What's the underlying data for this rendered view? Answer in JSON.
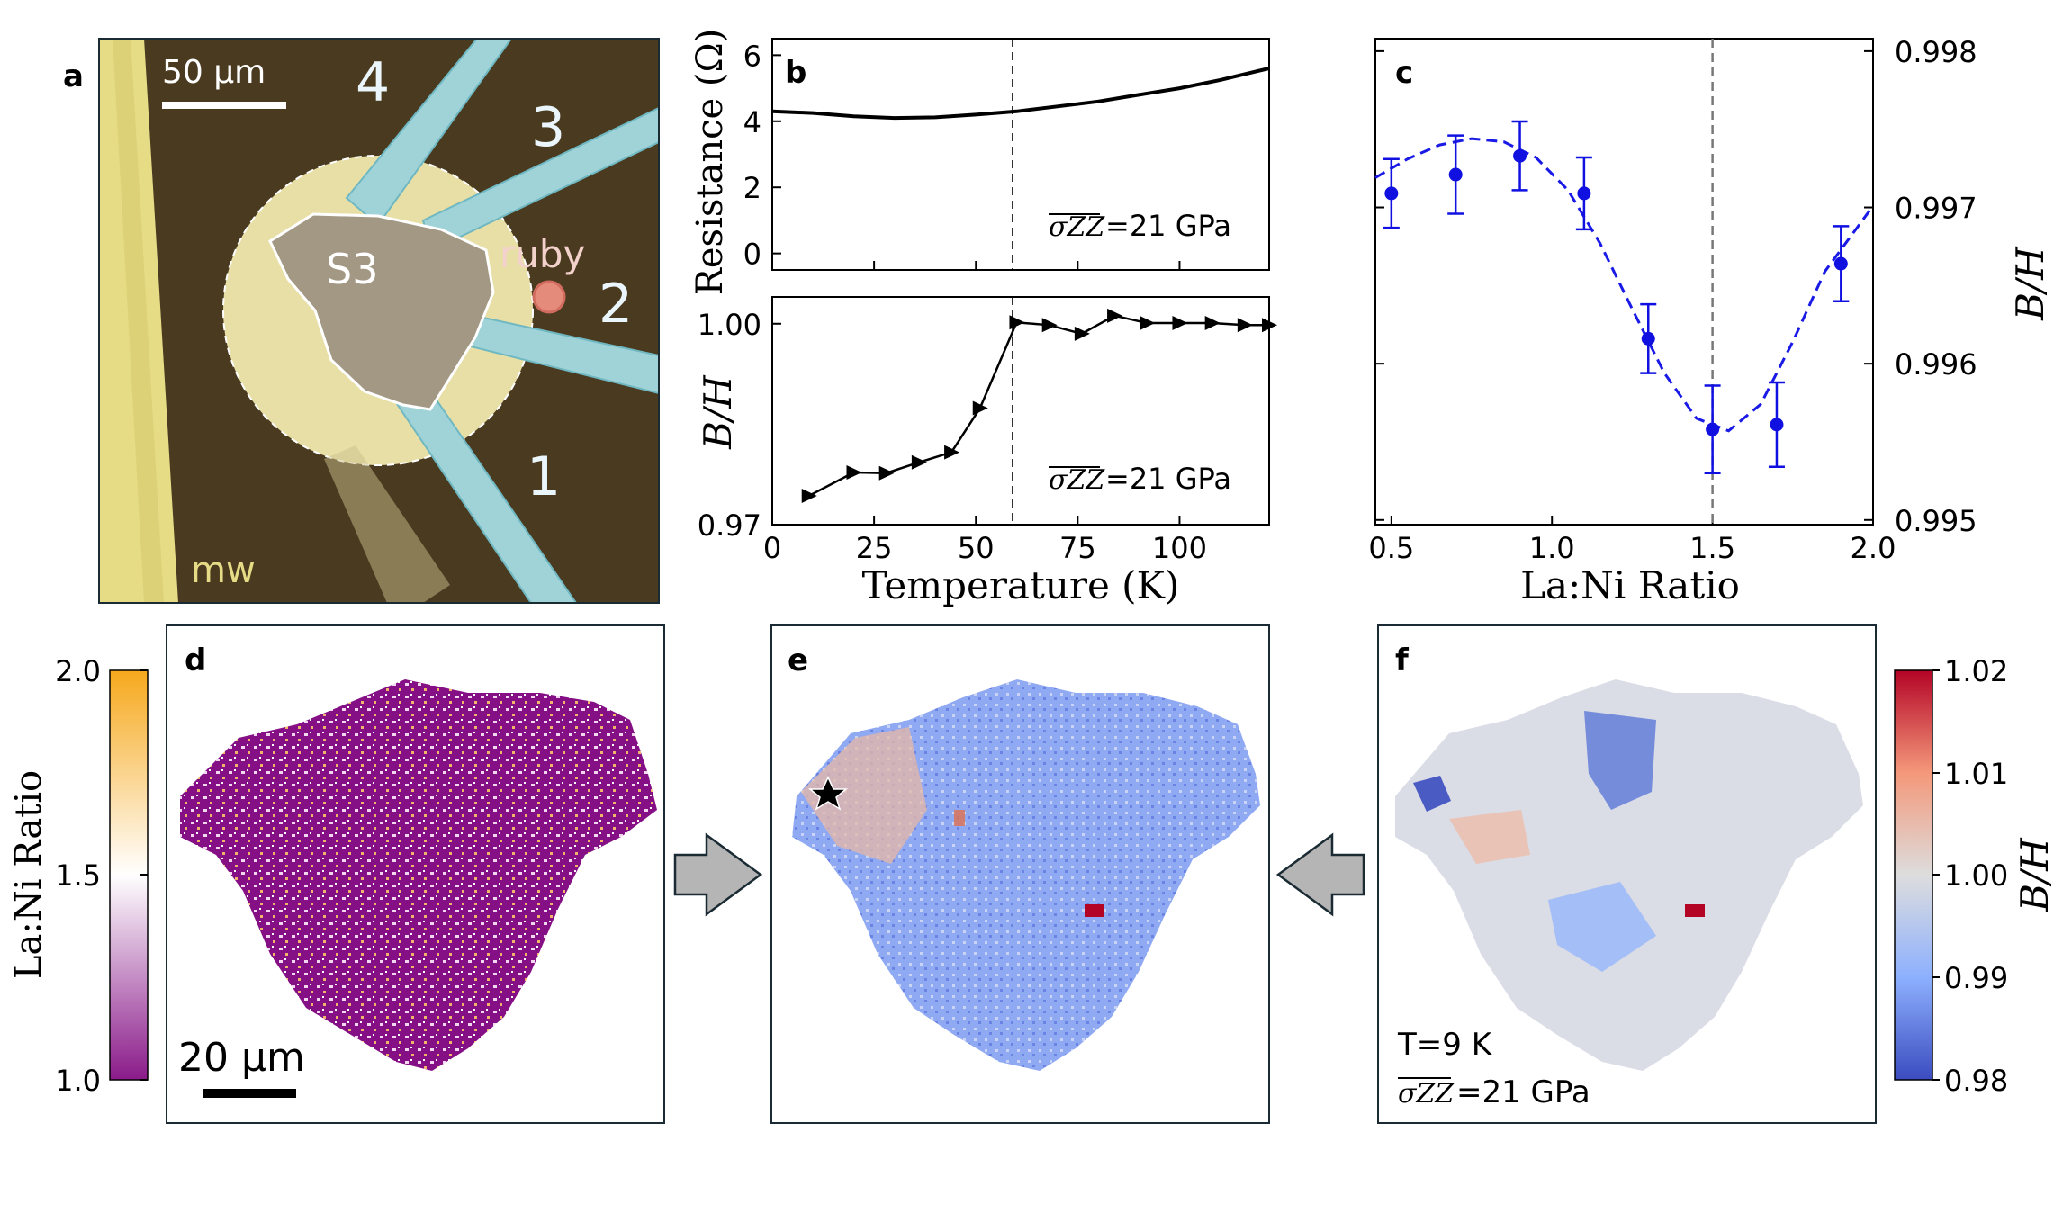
{
  "colors": {
    "plot_blue": "#1010e0",
    "fit_blue": "#1a1ae6",
    "marker_black": "#000000",
    "photo_bg": "#4a3a20",
    "photo_wire": "#e6dc86",
    "photo_disk": "#e8dfa7",
    "photo_lead": "#9fd3d8",
    "arrow_gray": "#b5b5b5",
    "frame": "#1b2b34"
  },
  "panel_a": {
    "label": "a",
    "scale_bar": "50 µm",
    "lead_labels": [
      "4",
      "3",
      "2",
      "1"
    ],
    "sample_label": "S3",
    "ruby_label": "ruby",
    "mw_label": "mw"
  },
  "chart_data": [
    {
      "id": "b-top",
      "type": "line",
      "panel_label": "b",
      "ylabel": "Resistance (Ω)",
      "xlabel": "",
      "annotation": "=21 GPa",
      "annotation_symbol": "σZZ",
      "xlim": [
        0,
        122
      ],
      "ylim": [
        -0.5,
        6.5
      ],
      "xticks": [
        0,
        25,
        50,
        75,
        100
      ],
      "yticks": [
        0,
        2,
        4,
        6
      ],
      "ytick_labels": [
        "0",
        "2",
        "4",
        "6"
      ],
      "vline_x": 59,
      "x": [
        0,
        10,
        20,
        30,
        40,
        50,
        60,
        70,
        80,
        90,
        100,
        110,
        122
      ],
      "y": [
        4.3,
        4.25,
        4.15,
        4.1,
        4.12,
        4.2,
        4.3,
        4.45,
        4.6,
        4.8,
        5.0,
        5.25,
        5.6
      ]
    },
    {
      "id": "b-bottom",
      "type": "line",
      "panel_label": "",
      "ylabel": "B/H",
      "xlabel": "Temperature (K)",
      "annotation": "=21 GPa",
      "annotation_symbol": "σZZ",
      "xlim": [
        0,
        122
      ],
      "ylim": [
        0.97,
        1.004
      ],
      "xticks": [
        0,
        25,
        50,
        75,
        100
      ],
      "xtick_labels": [
        "0",
        "25",
        "50",
        "75",
        "100"
      ],
      "yticks": [
        0.97,
        1.0
      ],
      "ytick_labels": [
        "0.97",
        "1.00"
      ],
      "vline_x": 59,
      "x": [
        9,
        20,
        28,
        36,
        44,
        51,
        60,
        68,
        76,
        84,
        92,
        100,
        108,
        116,
        122
      ],
      "y": [
        0.9743,
        0.9778,
        0.9777,
        0.9793,
        0.9808,
        0.9874,
        1.0002,
        0.9998,
        0.9985,
        1.0012,
        1.0001,
        1.0001,
        1.0001,
        0.9998,
        0.9998
      ]
    },
    {
      "id": "c",
      "type": "scatter",
      "panel_label": "c",
      "xlabel": "La:Ni Ratio",
      "ylabel": "B/H",
      "xlim": [
        0.45,
        2.0
      ],
      "ylim": [
        0.99497,
        0.99808
      ],
      "xticks": [
        0.5,
        1.0,
        1.5,
        2.0
      ],
      "xtick_labels": [
        "0.5",
        "1.0",
        "1.5",
        "2.0"
      ],
      "yticks": [
        0.995,
        0.996,
        0.997,
        0.998
      ],
      "ytick_labels": [
        "0.995",
        "0.996",
        "0.997",
        "0.998"
      ],
      "vline_x": 1.5,
      "x": [
        0.5,
        0.7,
        0.9,
        1.1,
        1.3,
        1.5,
        1.7,
        1.9
      ],
      "y": [
        0.99709,
        0.99721,
        0.99733,
        0.99709,
        0.99616,
        0.99558,
        0.99561,
        0.99664
      ],
      "err": [
        0.00022,
        0.00025,
        0.00022,
        0.00023,
        0.00022,
        0.00028,
        0.00027,
        0.00024
      ],
      "fit": {
        "x": [
          0.45,
          0.55,
          0.65,
          0.75,
          0.85,
          0.95,
          1.05,
          1.15,
          1.25,
          1.35,
          1.45,
          1.55,
          1.65,
          1.75,
          1.85,
          1.95,
          2.0
        ],
        "y": [
          0.99719,
          0.99731,
          0.9974,
          0.99744,
          0.99742,
          0.99732,
          0.99711,
          0.99677,
          0.99635,
          0.99594,
          0.99565,
          0.99557,
          0.99574,
          0.99614,
          0.99659,
          0.99687,
          0.99701
        ]
      }
    }
  ],
  "panel_d": {
    "label": "d",
    "colorbar_label": "La:Ni Ratio",
    "colorbar_ticks": [
      "2.0",
      "1.5",
      "1.0"
    ],
    "scale_bar": "20 µm"
  },
  "panel_e": {
    "label": "e"
  },
  "panel_f": {
    "label": "f",
    "temperature": "T=9 K",
    "stress": "=21 GPa",
    "stress_symbol": "σZZ",
    "colorbar_label": "B/H",
    "colorbar_ticks": [
      "1.02",
      "1.01",
      "1.00",
      "0.99",
      "0.98"
    ]
  }
}
